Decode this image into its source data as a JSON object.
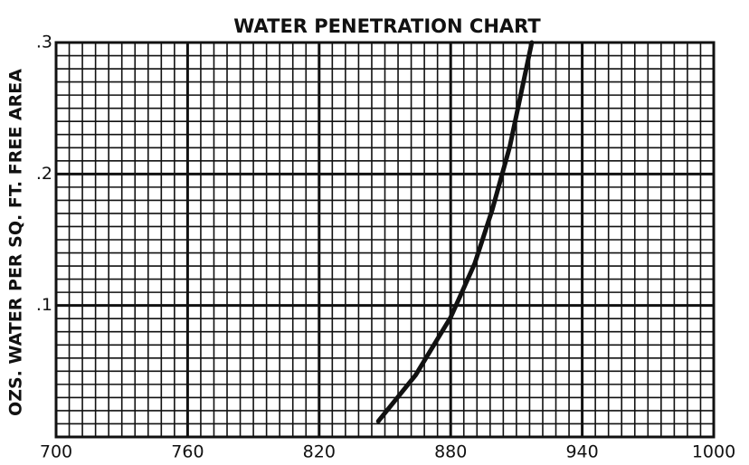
{
  "chart_data": {
    "type": "line",
    "title": "WATER PENETRATION CHART",
    "y_label": "OZS. WATER PER SQ. FT. FREE AREA",
    "xlim": [
      700,
      1000
    ],
    "xticks": [
      700,
      760,
      820,
      880,
      940,
      1000
    ],
    "ylim": [
      0,
      0.3
    ],
    "yticks": [
      {
        "value": 0.1,
        "label": ".1"
      },
      {
        "value": 0.2,
        "label": ".2"
      },
      {
        "value": 0.3,
        "label": ".3"
      }
    ],
    "grid": true,
    "series": [
      {
        "color": "#111111",
        "x": [
          847,
          864,
          880,
          891,
          899,
          907,
          917
        ],
        "values": [
          0.012,
          0.047,
          0.091,
          0.132,
          0.173,
          0.221,
          0.3
        ]
      }
    ]
  }
}
